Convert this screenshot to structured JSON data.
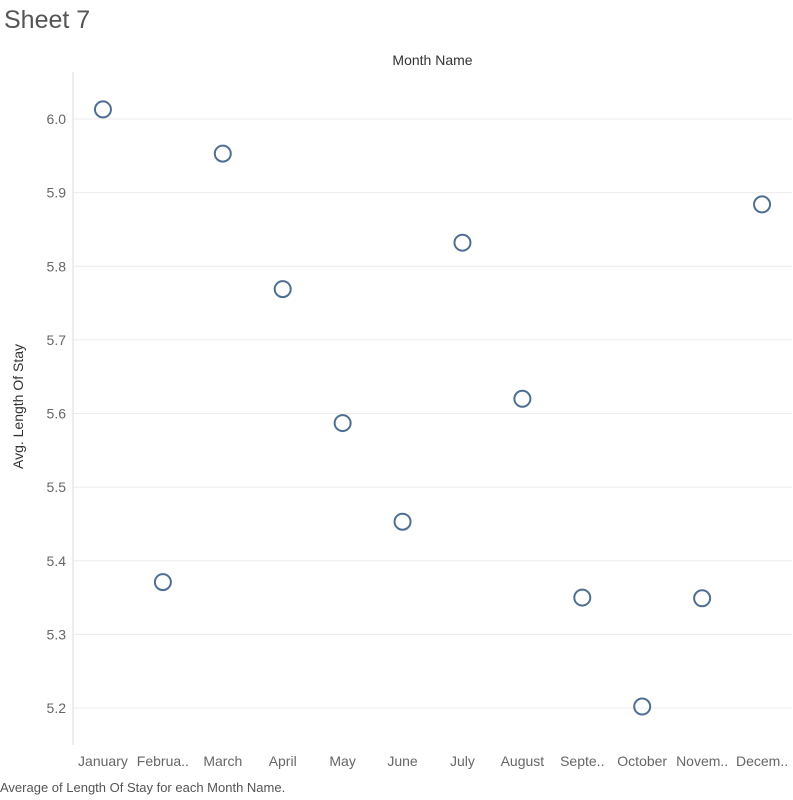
{
  "sheet": {
    "title": "Sheet 7",
    "caption": "Average of Length Of Stay for each Month Name."
  },
  "colors": {
    "marker": "#4e6e92",
    "gridline": "#ececec",
    "axis_line": "#dddddd"
  },
  "chart_data": {
    "type": "scatter",
    "title": "",
    "xlabel": "Month Name",
    "ylabel": "Avg. Length Of Stay",
    "x_axis_position": "top",
    "categories": [
      "January",
      "Februa..",
      "March",
      "April",
      "May",
      "June",
      "July",
      "August",
      "Septe..",
      "October",
      "Novem..",
      "Decem.."
    ],
    "values": [
      6.013,
      5.371,
      5.953,
      5.769,
      5.587,
      5.453,
      5.832,
      5.62,
      5.35,
      5.202,
      5.349,
      5.884
    ],
    "yticks": [
      "5.2",
      "5.3",
      "5.4",
      "5.5",
      "5.6",
      "5.7",
      "5.8",
      "5.9",
      "6.0"
    ],
    "ylim": [
      5.2,
      6.0
    ],
    "grid": true,
    "marker": "open-circle"
  }
}
